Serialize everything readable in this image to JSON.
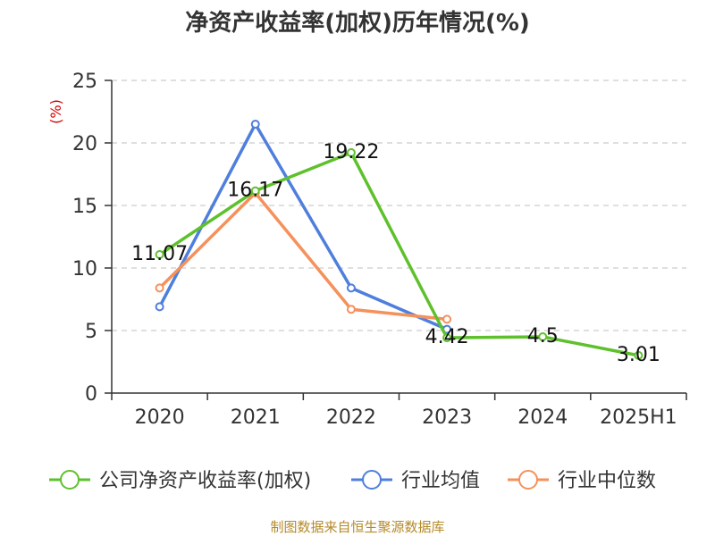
{
  "colors": {
    "roe": "#5ec12c",
    "industry_avg": "#4f7fdc",
    "industry_median": "#f5915b",
    "unit_label": "#d40000",
    "source": "#b58a2a"
  },
  "source_text": "制图数据来自恒生聚源数据库",
  "chart_data": {
    "type": "line",
    "title": "净资产收益率(加权)历年情况(%)",
    "ylabel": "(%)",
    "xlabel": "",
    "categories": [
      "2020",
      "2021",
      "2022",
      "2023",
      "2024",
      "2025H1"
    ],
    "ylim": [
      0,
      25
    ],
    "yticks": [
      0,
      5,
      10,
      15,
      20,
      25
    ],
    "grid": true,
    "legend_position": "bottom",
    "series": [
      {
        "name": "公司净资产收益率(加权)",
        "color_key": "roe",
        "values": [
          11.07,
          16.17,
          19.22,
          4.42,
          4.5,
          3.01
        ],
        "labels": [
          "11.07",
          "16.17",
          "19.22",
          "4.42",
          "4.5",
          "3.01"
        ]
      },
      {
        "name": "行业均值",
        "color_key": "industry_avg",
        "values": [
          6.9,
          21.5,
          8.4,
          5.1,
          null,
          null
        ],
        "labels": null
      },
      {
        "name": "行业中位数",
        "color_key": "industry_median",
        "values": [
          8.4,
          16.0,
          6.7,
          5.9,
          null,
          null
        ],
        "labels": null
      }
    ]
  }
}
